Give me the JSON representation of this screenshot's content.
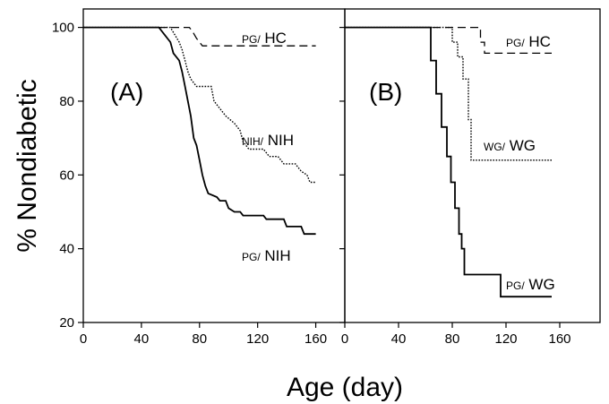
{
  "chart_data": {
    "type": "line",
    "ylabel": "% Nondiabetic",
    "xlabel": "Age (day)",
    "ylim": [
      20,
      105
    ],
    "yticks": [
      20,
      40,
      60,
      80,
      100
    ],
    "panels": [
      {
        "label": "(A)",
        "xlim": [
          0,
          180
        ],
        "xticks": [
          0,
          40,
          80,
          120,
          160
        ],
        "series": [
          {
            "name_prefix": "PG/",
            "name": "HC",
            "style": "dashed",
            "points": [
              [
                0,
                100
              ],
              [
                73,
                100
              ],
              [
                75,
                99
              ],
              [
                78,
                97
              ],
              [
                80,
                96
              ],
              [
                82,
                95
              ],
              [
                160,
                95
              ]
            ]
          },
          {
            "name_prefix": "NIH/",
            "name": "NIH",
            "style": "dotted",
            "points": [
              [
                0,
                100
              ],
              [
                60,
                100
              ],
              [
                63,
                98
              ],
              [
                66,
                96
              ],
              [
                68,
                94
              ],
              [
                70,
                91
              ],
              [
                72,
                88
              ],
              [
                74,
                86
              ],
              [
                78,
                84
              ],
              [
                88,
                84
              ],
              [
                90,
                80
              ],
              [
                94,
                78
              ],
              [
                98,
                76
              ],
              [
                104,
                74
              ],
              [
                108,
                72
              ],
              [
                110,
                69
              ],
              [
                114,
                67
              ],
              [
                124,
                67
              ],
              [
                128,
                65
              ],
              [
                134,
                65
              ],
              [
                138,
                63
              ],
              [
                146,
                63
              ],
              [
                150,
                61
              ],
              [
                154,
                60
              ],
              [
                156,
                58
              ],
              [
                160,
                58
              ]
            ]
          },
          {
            "name_prefix": "PG/",
            "name": "NIH",
            "style": "solid",
            "points": [
              [
                0,
                100
              ],
              [
                52,
                100
              ],
              [
                56,
                98
              ],
              [
                60,
                96
              ],
              [
                62,
                93
              ],
              [
                66,
                91
              ],
              [
                68,
                88
              ],
              [
                70,
                84
              ],
              [
                72,
                80
              ],
              [
                74,
                76
              ],
              [
                76,
                70
              ],
              [
                78,
                68
              ],
              [
                80,
                64
              ],
              [
                82,
                60
              ],
              [
                84,
                57
              ],
              [
                86,
                55
              ],
              [
                92,
                54
              ],
              [
                94,
                53
              ],
              [
                98,
                53
              ],
              [
                100,
                51
              ],
              [
                104,
                50
              ],
              [
                108,
                50
              ],
              [
                110,
                49
              ],
              [
                124,
                49
              ],
              [
                126,
                48
              ],
              [
                138,
                48
              ],
              [
                140,
                46
              ],
              [
                150,
                46
              ],
              [
                152,
                44
              ],
              [
                160,
                44
              ]
            ]
          }
        ]
      },
      {
        "label": "(B)",
        "xlim": [
          0,
          190
        ],
        "xticks": [
          0,
          40,
          80,
          120,
          160
        ],
        "series": [
          {
            "name_prefix": "PG/",
            "name": "HC",
            "style": "dashed",
            "points": [
              [
                0,
                100
              ],
              [
                97,
                100
              ],
              [
                101,
                100
              ],
              [
                101,
                96
              ],
              [
                104,
                96
              ],
              [
                104,
                93
              ],
              [
                154,
                93
              ]
            ]
          },
          {
            "name_prefix": "WG/",
            "name": "WG",
            "style": "dotted",
            "points": [
              [
                0,
                100
              ],
              [
                74,
                100
              ],
              [
                80,
                100
              ],
              [
                80,
                96
              ],
              [
                84,
                96
              ],
              [
                84,
                92
              ],
              [
                88,
                92
              ],
              [
                88,
                86
              ],
              [
                92,
                86
              ],
              [
                92,
                75
              ],
              [
                94,
                75
              ],
              [
                94,
                64
              ],
              [
                154,
                64
              ]
            ]
          },
          {
            "name_prefix": "PG/",
            "name": "WG",
            "style": "solid",
            "points": [
              [
                0,
                100
              ],
              [
                64,
                100
              ],
              [
                64,
                91
              ],
              [
                68,
                91
              ],
              [
                68,
                82
              ],
              [
                72,
                82
              ],
              [
                72,
                73
              ],
              [
                76,
                73
              ],
              [
                76,
                65
              ],
              [
                79,
                65
              ],
              [
                79,
                58
              ],
              [
                82,
                58
              ],
              [
                82,
                51
              ],
              [
                85,
                51
              ],
              [
                85,
                44
              ],
              [
                87,
                44
              ],
              [
                87,
                40
              ],
              [
                89,
                40
              ],
              [
                89,
                33
              ],
              [
                116,
                33
              ],
              [
                116,
                27
              ],
              [
                154,
                27
              ]
            ]
          }
        ]
      }
    ]
  }
}
